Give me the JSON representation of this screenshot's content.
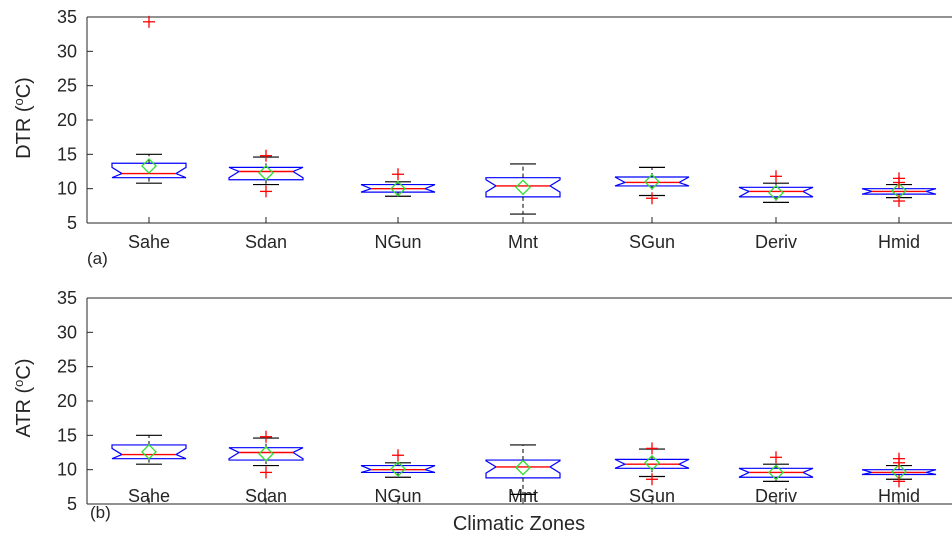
{
  "colors": {
    "box": "#0000ff",
    "median": "#ff0000",
    "mean": "#33dd33",
    "outlier": "#ff0000",
    "whisker": "#000000",
    "axis": "#262626"
  },
  "chart_data": [
    {
      "type": "box",
      "panel_label": "(a)",
      "ylabel": "DTR (",
      "ylabel_sup": "o",
      "ylabel_tail": "C)",
      "xlabel": "",
      "ylim": [
        5,
        35
      ],
      "yticks": [
        5,
        10,
        15,
        20,
        25,
        30,
        35
      ],
      "categories": [
        "Sahe",
        "Sdan",
        "NGun",
        "Mnt",
        "SGun",
        "Deriv",
        "Hmid"
      ],
      "boxes": [
        {
          "q1": 11.6,
          "median": 12.2,
          "q3": 13.7,
          "wlo": 10.8,
          "whi": 15.0,
          "mean": 13.3,
          "outliers": [
            34.3
          ]
        },
        {
          "q1": 11.3,
          "median": 12.5,
          "q3": 13.1,
          "wlo": 10.6,
          "whi": 14.6,
          "mean": 12.3,
          "outliers": [
            9.6,
            14.8
          ]
        },
        {
          "q1": 9.5,
          "median": 10.0,
          "q3": 10.6,
          "wlo": 8.9,
          "whi": 11.0,
          "mean": 10.0,
          "outliers": [
            12.1
          ]
        },
        {
          "q1": 8.8,
          "median": 10.4,
          "q3": 11.6,
          "wlo": 6.3,
          "whi": 13.6,
          "mean": 10.2,
          "outliers": []
        },
        {
          "q1": 10.4,
          "median": 10.9,
          "q3": 11.7,
          "wlo": 9.0,
          "whi": 13.1,
          "mean": 11.0,
          "outliers": [
            8.6
          ]
        },
        {
          "q1": 8.8,
          "median": 9.6,
          "q3": 10.2,
          "wlo": 8.0,
          "whi": 10.8,
          "mean": 9.4,
          "outliers": [
            11.8
          ]
        },
        {
          "q1": 9.2,
          "median": 9.6,
          "q3": 10.0,
          "wlo": 8.7,
          "whi": 10.6,
          "mean": 9.7,
          "outliers": [
            8.2,
            10.9,
            11.5
          ]
        }
      ]
    },
    {
      "type": "box",
      "panel_label": "(b)",
      "ylabel": "ATR (",
      "ylabel_sup": "o",
      "ylabel_tail": "C)",
      "xlabel": "Climatic Zones",
      "ylim": [
        5,
        35
      ],
      "yticks": [
        5,
        10,
        15,
        20,
        25,
        30,
        35
      ],
      "categories": [
        "Sahe",
        "Sdan",
        "NGun",
        "Mnt",
        "SGun",
        "Deriv",
        "Hmid"
      ],
      "boxes": [
        {
          "q1": 11.6,
          "median": 12.2,
          "q3": 13.6,
          "wlo": 10.8,
          "whi": 15.0,
          "mean": 12.6,
          "outliers": []
        },
        {
          "q1": 11.4,
          "median": 12.5,
          "q3": 13.2,
          "wlo": 10.6,
          "whi": 14.6,
          "mean": 12.3,
          "outliers": [
            9.6,
            14.8
          ]
        },
        {
          "q1": 9.6,
          "median": 10.0,
          "q3": 10.6,
          "wlo": 8.9,
          "whi": 11.0,
          "mean": 10.1,
          "outliers": [
            12.1
          ]
        },
        {
          "q1": 8.8,
          "median": 10.4,
          "q3": 11.4,
          "wlo": 6.4,
          "whi": 13.6,
          "mean": 10.3,
          "outliers": []
        },
        {
          "q1": 10.2,
          "median": 10.8,
          "q3": 11.5,
          "wlo": 9.0,
          "whi": 13.0,
          "mean": 11.0,
          "outliers": [
            8.6,
            13.1
          ]
        },
        {
          "q1": 8.9,
          "median": 9.6,
          "q3": 10.2,
          "wlo": 8.3,
          "whi": 10.8,
          "mean": 9.6,
          "outliers": [
            11.8
          ]
        },
        {
          "q1": 9.3,
          "median": 9.6,
          "q3": 10.0,
          "wlo": 8.6,
          "whi": 10.6,
          "mean": 9.7,
          "outliers": [
            8.3,
            11.0,
            11.6
          ]
        }
      ]
    }
  ]
}
